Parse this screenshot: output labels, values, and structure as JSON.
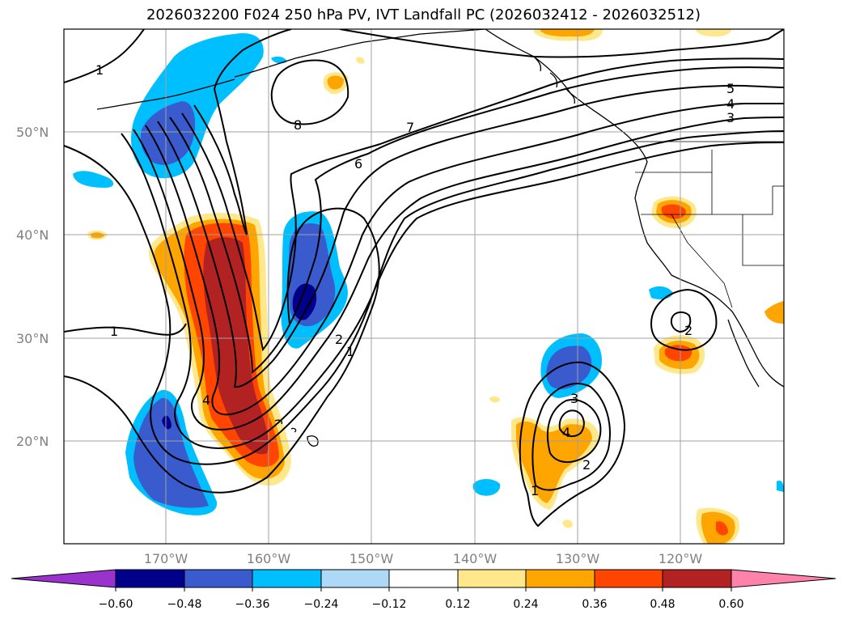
{
  "title": "2026032200 F024 250 hPa PV, IVT Landfall PC (2026032412 - 2026032512)",
  "colors": {
    "neg_060": "#9a32cd",
    "neg_048": "#00008b",
    "neg_036": "#3a5bcd",
    "neg_024": "#00bfff",
    "neg_012": "#add8f6",
    "zero": "#ffffff",
    "pos_012": "#ffe88c",
    "pos_024": "#ffa500",
    "pos_036": "#ff4500",
    "pos_048": "#b22222",
    "pos_060": "#ff82ab",
    "contour": "#000000",
    "grid": "#a0a0a0"
  },
  "lat_labels": [
    "50°N",
    "40°N",
    "30°N",
    "20°N"
  ],
  "lon_labels": [
    "170°W",
    "160°W",
    "150°W",
    "140°W",
    "130°W",
    "120°W"
  ],
  "colorbar": {
    "ticks": [
      "−0.60",
      "−0.48",
      "−0.36",
      "−0.24",
      "−0.12",
      "0.12",
      "0.24",
      "0.36",
      "0.48",
      "0.60"
    ]
  },
  "contour_labels": [
    "1",
    "1",
    "1",
    "2",
    "2",
    "2",
    "3",
    "3",
    "4",
    "4",
    "5",
    "6",
    "7",
    "8",
    "4",
    "1"
  ]
}
